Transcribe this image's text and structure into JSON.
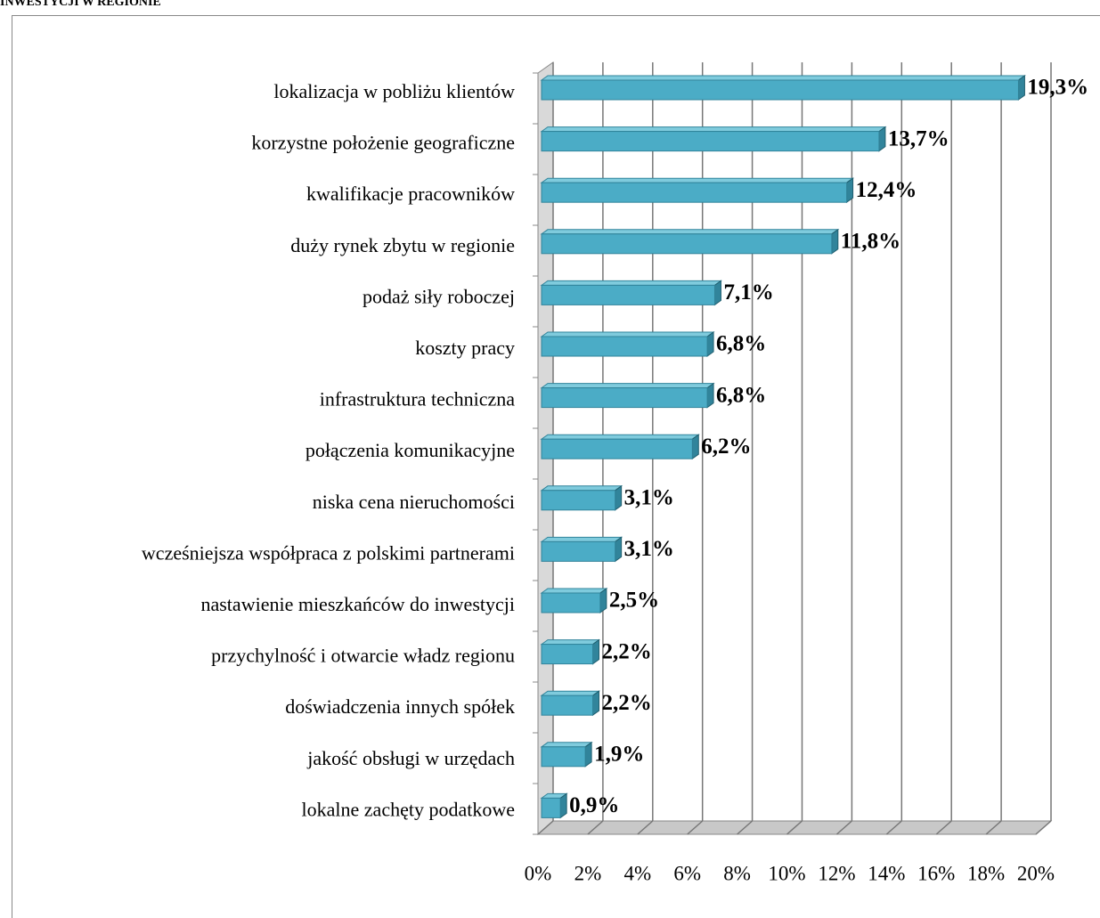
{
  "chart_data": {
    "type": "bar",
    "orientation": "horizontal",
    "title": "INWESTYCJI W REGIONIE",
    "categories": [
      "lokalizacja w pobliżu klientów",
      "korzystne położenie geograficzne",
      "kwalifikacje pracowników",
      "duży rynek zbytu w regionie",
      "podaż siły roboczej",
      "koszty pracy",
      "infrastruktura techniczna",
      "połączenia komunikacyjne",
      "niska cena nieruchomości",
      "wcześniejsza współpraca z polskimi partnerami",
      "nastawienie mieszkańców do inwestycji",
      "przychylność i otwarcie władz regionu",
      "doświadczenia innych spółek",
      "jakość obsługi w urzędach",
      "lokalne zachęty podatkowe"
    ],
    "values": [
      19.3,
      13.7,
      12.4,
      11.8,
      7.1,
      6.8,
      6.8,
      6.2,
      3.1,
      3.1,
      2.5,
      2.2,
      2.2,
      1.9,
      0.9
    ],
    "value_labels": [
      "19,3%",
      "13,7%",
      "12,4%",
      "11,8%",
      "7,1%",
      "6,8%",
      "6,8%",
      "6,2%",
      "3,1%",
      "3,1%",
      "2,5%",
      "2,2%",
      "2,2%",
      "1,9%",
      "0,9%"
    ],
    "color": "#4bacc6",
    "xlim": [
      0,
      20
    ],
    "xticks": [
      {
        "value": 0,
        "label": "0%"
      },
      {
        "value": 2,
        "label": "2%"
      },
      {
        "value": 4,
        "label": "4%"
      },
      {
        "value": 6,
        "label": "6%"
      },
      {
        "value": 8,
        "label": "8%"
      },
      {
        "value": 10,
        "label": "10%"
      },
      {
        "value": 12,
        "label": "12%"
      },
      {
        "value": 14,
        "label": "14%"
      },
      {
        "value": 16,
        "label": "16%"
      },
      {
        "value": 18,
        "label": "18%"
      },
      {
        "value": 20,
        "label": "20%"
      }
    ],
    "grid": true
  }
}
